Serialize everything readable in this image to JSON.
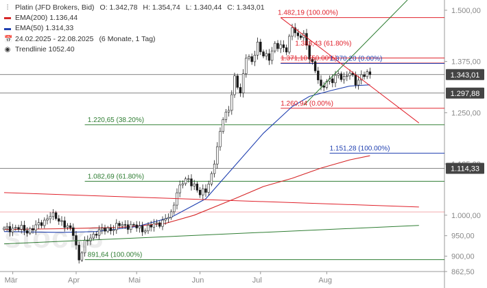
{
  "legend": {
    "instrument": "Platin (JFD Brokers, Bid)",
    "ohlc": [
      {
        "k": "O:",
        "v": "1.342,78"
      },
      {
        "k": "H:",
        "v": "1.354,74"
      },
      {
        "k": "L:",
        "v": "1.340,44"
      },
      {
        "k": "C:",
        "v": "1.343,01"
      }
    ],
    "ema200": {
      "label": "EMA(200)",
      "value": "1.136,44",
      "color": "#d62728"
    },
    "ema50": {
      "label": "EMA(50)",
      "value": "1.314,33",
      "color": "#1f3fb0"
    },
    "range": "24.02.2025 - 22.08.2025",
    "period": "(6 Monate, 1 Tag)",
    "trend": {
      "label": "Trendlinie",
      "value": "1052.40"
    }
  },
  "watermark": "stock3",
  "colors": {
    "up": "#1a1a1a",
    "down": "#1a1a1a",
    "red": "#e0202a",
    "green": "#2e7d32",
    "blue": "#1f3fb0",
    "grid": "#333333",
    "badge": "#444444",
    "badgeText": "#ffffff"
  },
  "chart_data": {
    "type": "candlestick",
    "ylim": [
      862.5,
      1525
    ],
    "y_ticks": [
      {
        "v": 1500,
        "label": "1.500,00"
      },
      {
        "v": 1375,
        "label": "1.375,00"
      },
      {
        "v": 1250,
        "label": "1.250,00"
      },
      {
        "v": 1125,
        "label": "1.125,00"
      },
      {
        "v": 1000,
        "label": "1.000,00"
      },
      {
        "v": 950,
        "label": "950,00"
      },
      {
        "v": 900,
        "label": "900,00"
      },
      {
        "v": 862.5,
        "label": "862,50"
      }
    ],
    "x_months": [
      {
        "label": "Mär",
        "i": 3
      },
      {
        "label": "Apr",
        "i": 25
      },
      {
        "label": "Mai",
        "i": 46
      },
      {
        "label": "Jun",
        "i": 68
      },
      {
        "label": "Jul",
        "i": 89
      },
      {
        "label": "Aug",
        "i": 112
      }
    ],
    "n_bars": 128,
    "key_closes": [
      [
        0,
        965
      ],
      [
        4,
        970
      ],
      [
        8,
        962
      ],
      [
        12,
        975
      ],
      [
        16,
        1000
      ],
      [
        20,
        985
      ],
      [
        24,
        955
      ],
      [
        26,
        895
      ],
      [
        28,
        930
      ],
      [
        32,
        960
      ],
      [
        36,
        965
      ],
      [
        40,
        975
      ],
      [
        44,
        975
      ],
      [
        48,
        965
      ],
      [
        52,
        975
      ],
      [
        56,
        990
      ],
      [
        58,
        1000
      ],
      [
        60,
        1060
      ],
      [
        62,
        1080
      ],
      [
        64,
        1085
      ],
      [
        66,
        1075
      ],
      [
        68,
        1050
      ],
      [
        70,
        1060
      ],
      [
        72,
        1100
      ],
      [
        74,
        1160
      ],
      [
        76,
        1240
      ],
      [
        78,
        1260
      ],
      [
        80,
        1330
      ],
      [
        82,
        1300
      ],
      [
        84,
        1390
      ],
      [
        86,
        1370
      ],
      [
        88,
        1420
      ],
      [
        90,
        1390
      ],
      [
        92,
        1380
      ],
      [
        94,
        1420
      ],
      [
        96,
        1410
      ],
      [
        98,
        1400
      ],
      [
        100,
        1465
      ],
      [
        102,
        1430
      ],
      [
        104,
        1440
      ],
      [
        106,
        1390
      ],
      [
        108,
        1350
      ],
      [
        110,
        1310
      ],
      [
        112,
        1330
      ],
      [
        114,
        1325
      ],
      [
        116,
        1345
      ],
      [
        118,
        1335
      ],
      [
        120,
        1345
      ],
      [
        122,
        1325
      ],
      [
        124,
        1340
      ],
      [
        127,
        1343
      ]
    ],
    "ema200": [
      [
        0,
        965
      ],
      [
        20,
        967
      ],
      [
        40,
        970
      ],
      [
        56,
        980
      ],
      [
        66,
        1000
      ],
      [
        80,
        1040
      ],
      [
        90,
        1070
      ],
      [
        100,
        1090
      ],
      [
        110,
        1115
      ],
      [
        120,
        1135
      ],
      [
        127,
        1145
      ]
    ],
    "ema50": [
      [
        0,
        960
      ],
      [
        20,
        958
      ],
      [
        32,
        960
      ],
      [
        46,
        972
      ],
      [
        58,
        995
      ],
      [
        70,
        1040
      ],
      [
        80,
        1120
      ],
      [
        90,
        1200
      ],
      [
        100,
        1265
      ],
      [
        106,
        1290
      ],
      [
        114,
        1305
      ],
      [
        120,
        1315
      ],
      [
        127,
        1318
      ]
    ],
    "horizontal_lines": [
      {
        "v": 1482.19,
        "label": "1.482,19 (100.00%)",
        "color": "red",
        "from": 96,
        "lx": 95
      },
      {
        "v": 1383.43,
        "label": "1.383,43 (61.80%)",
        "color": "red",
        "from": 96,
        "lx": 101,
        "ly": 1407
      },
      {
        "v": 1371.1,
        "label": "1.371,10 (50.00%)",
        "color": "red",
        "from": 96,
        "lx": 96
      },
      {
        "v": 1370.2,
        "label": "1.370,20 (0.00%)",
        "color": "blue",
        "from": 96,
        "lx": 113
      },
      {
        "v": 1260.94,
        "label": "1.260,94 (0.00%)",
        "color": "red",
        "from": 96,
        "lx": 96
      },
      {
        "v": 1220.65,
        "label": "1.220,65 (38.20%)",
        "color": "green",
        "from": 28,
        "lx": 29
      },
      {
        "v": 1151.28,
        "label": "1.151,28 (100.00%)",
        "color": "blue",
        "from": 113,
        "lx": 113
      },
      {
        "v": 1082.69,
        "label": "1.082,69 (61.80%)",
        "color": "green",
        "from": 28,
        "lx": 29
      },
      {
        "v": 891.64,
        "label": "891,64 (100.00%)",
        "color": "green",
        "from": 28,
        "lx": 29
      }
    ],
    "plain_lines": [
      {
        "v": 1114.33,
        "color": "grid"
      },
      {
        "v": 1297.88,
        "color": "grid"
      },
      {
        "v": 1343.01,
        "color": "grid"
      },
      {
        "v": 1008,
        "color": "red_thin"
      }
    ],
    "trendlines": [
      {
        "p1": [
          96,
          1482
        ],
        "p2": [
          144,
          1225
        ],
        "color": "red"
      },
      {
        "p1": [
          0,
          1055
        ],
        "p2": [
          144,
          1020
        ],
        "color": "red"
      },
      {
        "p1": [
          0,
          930
        ],
        "p2": [
          144,
          975
        ],
        "color": "green"
      },
      {
        "p1": [
          104,
          1268
        ],
        "p2": [
          140,
          1525
        ],
        "color": "green"
      }
    ],
    "badges": [
      {
        "v": 1343.01,
        "label": "1.343,01"
      },
      {
        "v": 1297.88,
        "label": "1.297,88"
      },
      {
        "v": 1114.33,
        "label": "1.114,33"
      }
    ]
  }
}
